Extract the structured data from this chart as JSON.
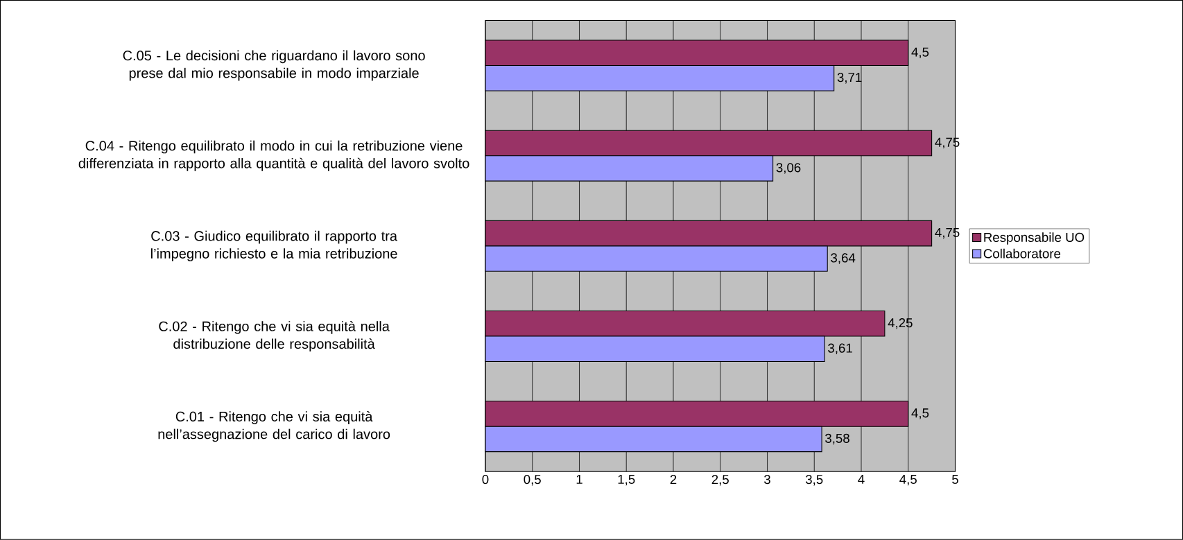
{
  "chart_data": {
    "type": "bar",
    "orientation": "horizontal",
    "categories": [
      "C.05 - Le decisioni che riguardano il lavoro sono prese dal mio responsabile in modo imparziale",
      "C.04 - Ritengo equilibrato il modo in cui la retribuzione viene differenziata in rapporto alla quantità e qualità del lavoro svolto",
      "C.03 - Giudico equilibrato il rapporto tra l’impegno richiesto e la mia retribuzione",
      "C.02 - Ritengo che vi sia equità nella distribuzione delle responsabilità",
      "C.01 - Ritengo che vi sia equità nell’assegnazione del carico di lavoro"
    ],
    "series": [
      {
        "name": "Responsabile UO",
        "color": "#993366",
        "values": [
          4.5,
          4.75,
          4.75,
          4.25,
          4.5
        ],
        "value_labels": [
          "4,5",
          "4,75",
          "4,75",
          "4,25",
          "4,5"
        ]
      },
      {
        "name": "Collaboratore",
        "color": "#9999ff",
        "values": [
          3.71,
          3.06,
          3.64,
          3.61,
          3.58
        ],
        "value_labels": [
          "3,71",
          "3,06",
          "3,64",
          "3,61",
          "3,58"
        ]
      }
    ],
    "xlim": [
      0,
      5
    ],
    "xticks": [
      0,
      {
        "value": 0.5,
        "label": "0,5"
      },
      1,
      {
        "value": 1.5,
        "label": "1,5"
      },
      2,
      {
        "value": 2.5,
        "label": "2,5"
      },
      3,
      {
        "value": 3.5,
        "label": "3,5"
      },
      4,
      {
        "value": 4.5,
        "label": "4,5"
      },
      5
    ],
    "grid": "x",
    "legend": "right"
  }
}
